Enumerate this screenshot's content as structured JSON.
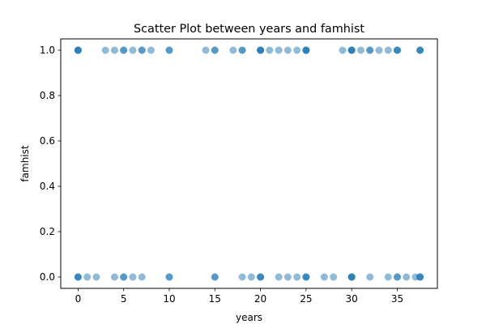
{
  "chart_data": {
    "type": "scatter",
    "title": "Scatter Plot between years and famhist",
    "xlabel": "years",
    "ylabel": "famhist",
    "xlim": [
      -1.9,
      39.4
    ],
    "ylim": [
      -0.05,
      1.05
    ],
    "xticks": [
      0,
      5,
      10,
      15,
      20,
      25,
      30,
      35
    ],
    "yticks": [
      0.0,
      0.2,
      0.4,
      0.6,
      0.8,
      1.0
    ],
    "ytick_labels": [
      "0.0",
      "0.2",
      "0.4",
      "0.6",
      "0.8",
      "1.0"
    ],
    "grid": false,
    "marker_color": "#1f77b4",
    "marker_alpha": 0.5,
    "series": [
      {
        "x": [
          0,
          0,
          0,
          0,
          3,
          4,
          5,
          5,
          6,
          7,
          7,
          8,
          10,
          10,
          14,
          15,
          15,
          17,
          18,
          18,
          20,
          20,
          20,
          20,
          21,
          22,
          23,
          24,
          25,
          25,
          25,
          25,
          29,
          30,
          30,
          30,
          30,
          31,
          32,
          32,
          33,
          34,
          35,
          35,
          35,
          37.5,
          37.5,
          37.5
        ],
        "y": [
          1,
          1,
          1,
          1,
          1,
          1,
          1,
          1,
          1,
          1,
          1,
          1,
          1,
          1,
          1,
          1,
          1,
          1,
          1,
          1,
          1,
          1,
          1,
          1,
          1,
          1,
          1,
          1,
          1,
          1,
          1,
          1,
          1,
          1,
          1,
          1,
          1,
          1,
          1,
          1,
          1,
          1,
          1,
          1,
          1,
          1,
          1,
          1
        ]
      },
      {
        "x": [
          0,
          0,
          0,
          1,
          2,
          4,
          5,
          5,
          6,
          7,
          10,
          10,
          15,
          15,
          18,
          19,
          20,
          20,
          20,
          22,
          23,
          24,
          25,
          25,
          25,
          27,
          28,
          30,
          30,
          30,
          30,
          32,
          34,
          35,
          35,
          36,
          37,
          37.5,
          37.5,
          37.5
        ],
        "y": [
          0,
          0,
          0,
          0,
          0,
          0,
          0,
          0,
          0,
          0,
          0,
          0,
          0,
          0,
          0,
          0,
          0,
          0,
          0,
          0,
          0,
          0,
          0,
          0,
          0,
          0,
          0,
          0,
          0,
          0,
          0,
          0,
          0,
          0,
          0,
          0,
          0,
          0,
          0,
          0
        ]
      }
    ]
  }
}
